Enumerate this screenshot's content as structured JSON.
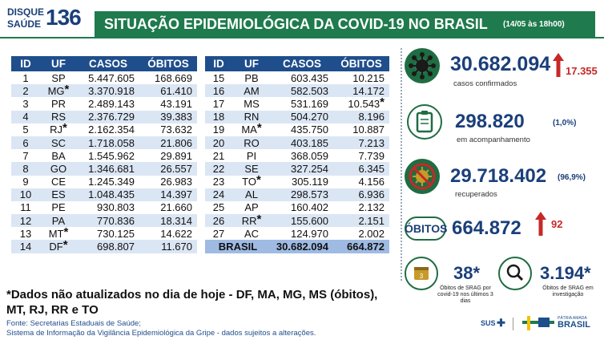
{
  "header": {
    "logo_line1": "DISQUE",
    "logo_line2": "SAÚDE",
    "logo_number": "136",
    "title": "SITUAÇÃO EPIDEMIOLÓGICA DA COVID-19 NO BRASIL",
    "date": "(14/05 às 18h00)"
  },
  "table": {
    "columns": [
      "ID",
      "UF",
      "CASOS",
      "ÓBITOS"
    ],
    "left_rows": [
      {
        "id": "1",
        "uf": "SP",
        "ast_uf": "",
        "casos": "5.447.605",
        "obitos": "168.669",
        "ast_ob": ""
      },
      {
        "id": "2",
        "uf": "MG",
        "ast_uf": "*",
        "casos": "3.370.918",
        "obitos": "61.410",
        "ast_ob": ""
      },
      {
        "id": "3",
        "uf": "PR",
        "ast_uf": "",
        "casos": "2.489.143",
        "obitos": "43.191",
        "ast_ob": ""
      },
      {
        "id": "4",
        "uf": "RS",
        "ast_uf": "",
        "casos": "2.376.729",
        "obitos": "39.383",
        "ast_ob": ""
      },
      {
        "id": "5",
        "uf": "RJ",
        "ast_uf": "*",
        "casos": "2.162.354",
        "obitos": "73.632",
        "ast_ob": ""
      },
      {
        "id": "6",
        "uf": "SC",
        "ast_uf": "",
        "casos": "1.718.058",
        "obitos": "21.806",
        "ast_ob": ""
      },
      {
        "id": "7",
        "uf": "BA",
        "ast_uf": "",
        "casos": "1.545.962",
        "obitos": "29.891",
        "ast_ob": ""
      },
      {
        "id": "8",
        "uf": "GO",
        "ast_uf": "",
        "casos": "1.346.681",
        "obitos": "26.557",
        "ast_ob": ""
      },
      {
        "id": "9",
        "uf": "CE",
        "ast_uf": "",
        "casos": "1.245.349",
        "obitos": "26.983",
        "ast_ob": ""
      },
      {
        "id": "10",
        "uf": "ES",
        "ast_uf": "",
        "casos": "1.048.435",
        "obitos": "14.397",
        "ast_ob": ""
      },
      {
        "id": "11",
        "uf": "PE",
        "ast_uf": "",
        "casos": "930.803",
        "obitos": "21.660",
        "ast_ob": ""
      },
      {
        "id": "12",
        "uf": "PA",
        "ast_uf": "",
        "casos": "770.836",
        "obitos": "18.314",
        "ast_ob": ""
      },
      {
        "id": "13",
        "uf": "MT",
        "ast_uf": "*",
        "casos": "730.125",
        "obitos": "14.622",
        "ast_ob": ""
      },
      {
        "id": "14",
        "uf": "DF",
        "ast_uf": "*",
        "casos": "698.807",
        "obitos": "11.670",
        "ast_ob": ""
      }
    ],
    "right_rows": [
      {
        "id": "15",
        "uf": "PB",
        "ast_uf": "",
        "casos": "603.435",
        "obitos": "10.215",
        "ast_ob": ""
      },
      {
        "id": "16",
        "uf": "AM",
        "ast_uf": "",
        "casos": "582.503",
        "obitos": "14.172",
        "ast_ob": ""
      },
      {
        "id": "17",
        "uf": "MS",
        "ast_uf": "",
        "casos": "531.169",
        "obitos": "10.543",
        "ast_ob": "*"
      },
      {
        "id": "18",
        "uf": "RN",
        "ast_uf": "",
        "casos": "504.270",
        "obitos": "8.196",
        "ast_ob": ""
      },
      {
        "id": "19",
        "uf": "MA",
        "ast_uf": "*",
        "casos": "435.750",
        "obitos": "10.887",
        "ast_ob": ""
      },
      {
        "id": "20",
        "uf": "RO",
        "ast_uf": "",
        "casos": "403.185",
        "obitos": "7.213",
        "ast_ob": ""
      },
      {
        "id": "21",
        "uf": "PI",
        "ast_uf": "",
        "casos": "368.059",
        "obitos": "7.739",
        "ast_ob": ""
      },
      {
        "id": "22",
        "uf": "SE",
        "ast_uf": "",
        "casos": "327.254",
        "obitos": "6.345",
        "ast_ob": ""
      },
      {
        "id": "23",
        "uf": "TO",
        "ast_uf": "*",
        "casos": "305.119",
        "obitos": "4.156",
        "ast_ob": ""
      },
      {
        "id": "24",
        "uf": "AL",
        "ast_uf": "",
        "casos": "298.573",
        "obitos": "6.936",
        "ast_ob": ""
      },
      {
        "id": "25",
        "uf": "AP",
        "ast_uf": "",
        "casos": "160.402",
        "obitos": "2.132",
        "ast_ob": ""
      },
      {
        "id": "26",
        "uf": "RR",
        "ast_uf": "*",
        "casos": "155.600",
        "obitos": "2.151",
        "ast_ob": ""
      },
      {
        "id": "27",
        "uf": "AC",
        "ast_uf": "",
        "casos": "124.970",
        "obitos": "2.002",
        "ast_ob": ""
      }
    ],
    "total": {
      "label": "BRASIL",
      "casos": "30.682.094",
      "obitos": "664.872"
    }
  },
  "note": "*Dados não atualizados no dia de hoje - DF, MA, MG, MS (óbitos), MT, RJ, RR e TO",
  "source_line1": "Fonte: Secretarias Estaduais de Saúde;",
  "source_line2": "Sistema de Informação da Vigilância Epidemiológica da Gripe - dados sujeitos a alterações.",
  "panel": {
    "confirmed_value": "30.682.094",
    "confirmed_new": "17.355",
    "confirmed_label": "casos confirmados",
    "monitoring_value": "298.820",
    "monitoring_pct": "(1,0%)",
    "monitoring_label": "em acompanhamento",
    "recovered_value": "29.718.402",
    "recovered_pct": "(96,9%)",
    "recovered_label": "recuperados",
    "deaths_label": "ÓBITOS",
    "deaths_value": "664.872",
    "deaths_new": "92",
    "srag_value": "38*",
    "srag_label": "Óbitos de SRAG por covid-19 nos últimos 3 dias",
    "investigation_value": "3.194*",
    "investigation_label": "Óbitos de SRAG em investigação",
    "calendar_day": "3"
  },
  "footer": {
    "sus": "SUS",
    "ministry_line1": "PÁTRIA AMADA",
    "ministry_line2": "BRASIL"
  },
  "colors": {
    "title_green": "#1f7a4d",
    "header_blue": "#1f4e8c",
    "alt_row": "#dbe6f4",
    "total_row": "#9fbbe3",
    "icon_green": "#1f6d42",
    "accent_red": "#c62828",
    "value_blue": "#1a3f7a"
  }
}
